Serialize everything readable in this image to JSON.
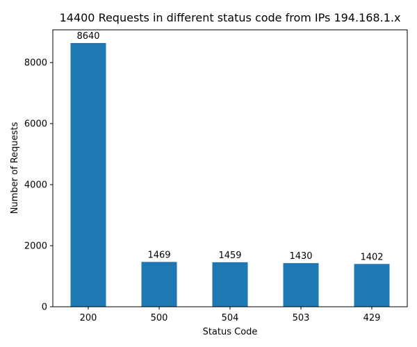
{
  "chart_data": {
    "type": "bar",
    "title": "14400 Requests in different status code from IPs 194.168.1.x",
    "xlabel": "Status Code",
    "ylabel": "Number of Requests",
    "categories": [
      "200",
      "500",
      "504",
      "503",
      "429"
    ],
    "values": [
      8640,
      1469,
      1459,
      1430,
      1402
    ],
    "data_labels": [
      "8640",
      "1469",
      "1459",
      "1430",
      "1402"
    ],
    "ylim": [
      0,
      9072
    ],
    "yticks": [
      0,
      2000,
      4000,
      6000,
      8000
    ],
    "ytick_labels": [
      "0",
      "2000",
      "4000",
      "6000",
      "8000"
    ],
    "grid": false,
    "legend": "none",
    "colors": {
      "bar": "#1f77b4",
      "axis": "#000000",
      "text": "#000000"
    }
  }
}
